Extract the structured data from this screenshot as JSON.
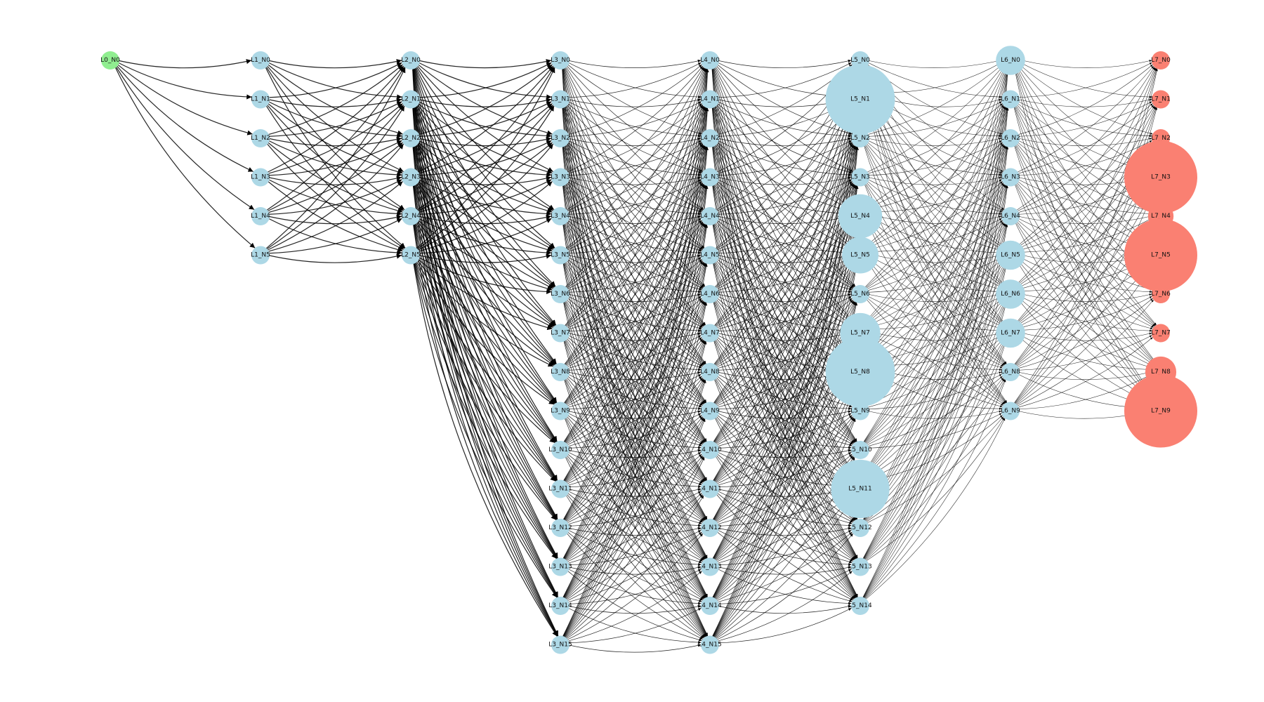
{
  "diagram": {
    "type": "layered-network",
    "colors": {
      "input": "#90EE90",
      "hidden": "#ADD8E6",
      "output": "#FA8072",
      "edge": "#000000"
    },
    "layers": [
      {
        "id": "L0",
        "role": "input",
        "nodes": [
          "L0_N0"
        ]
      },
      {
        "id": "L1",
        "role": "hidden",
        "nodes": [
          "L1_N0",
          "L1_N1",
          "L1_N2",
          "L1_N3",
          "L1_N4",
          "L1_N5"
        ]
      },
      {
        "id": "L2",
        "role": "hidden",
        "nodes": [
          "L2_N0",
          "L2_N1",
          "L2_N2",
          "L2_N3",
          "L2_N4",
          "L2_N5"
        ]
      },
      {
        "id": "L3",
        "role": "hidden",
        "nodes": [
          "L3_N0",
          "L3_N1",
          "L3_N2",
          "L3_N3",
          "L3_N4",
          "L3_N5",
          "L3_N6",
          "L3_N7",
          "L3_N8",
          "L3_N9",
          "L3_N10",
          "L3_N11",
          "L3_N12",
          "L3_N13",
          "L3_N14",
          "L3_N15"
        ]
      },
      {
        "id": "L4",
        "role": "hidden",
        "nodes": [
          "L4_N0",
          "L4_N1",
          "L4_N2",
          "L4_N3",
          "L4_N4",
          "L4_N5",
          "L4_N6",
          "L4_N7",
          "L4_N8",
          "L4_N9",
          "L4_N10",
          "L4_N11",
          "L4_N12",
          "L4_N13",
          "L4_N14",
          "L4_N15"
        ]
      },
      {
        "id": "L5",
        "role": "hidden",
        "nodes": [
          "L5_N0",
          "L5_N1",
          "L5_N2",
          "L5_N3",
          "L5_N4",
          "L5_N5",
          "L5_N6",
          "L5_N7",
          "L5_N8",
          "L5_N9",
          "L5_N10",
          "L5_N11",
          "L5_N12",
          "L5_N13",
          "L5_N14"
        ]
      },
      {
        "id": "L6",
        "role": "hidden",
        "nodes": [
          "L6_N0",
          "L6_N1",
          "L6_N2",
          "L6_N3",
          "L6_N4",
          "L6_N5",
          "L6_N6",
          "L6_N7",
          "L6_N8",
          "L6_N9"
        ]
      },
      {
        "id": "L7",
        "role": "output",
        "nodes": [
          "L7_N0",
          "L7_N1",
          "L7_N2",
          "L7_N3",
          "L7_N4",
          "L7_N5",
          "L7_N6",
          "L7_N7",
          "L7_N8",
          "L7_N9"
        ]
      }
    ],
    "node_weights": {
      "L5_N1": 3.8,
      "L5_N4": 2.4,
      "L5_N5": 2.0,
      "L5_N7": 2.2,
      "L5_N8": 3.8,
      "L5_N11": 3.2,
      "L6_N0": 1.6,
      "L6_N5": 1.6,
      "L6_N6": 1.6,
      "L6_N7": 1.6,
      "L7_N3": 4.0,
      "L7_N4": 1.4,
      "L7_N5": 4.0,
      "L7_N8": 1.7,
      "L7_N9": 4.0
    },
    "connectivity": "fully-connected between consecutive layers"
  }
}
